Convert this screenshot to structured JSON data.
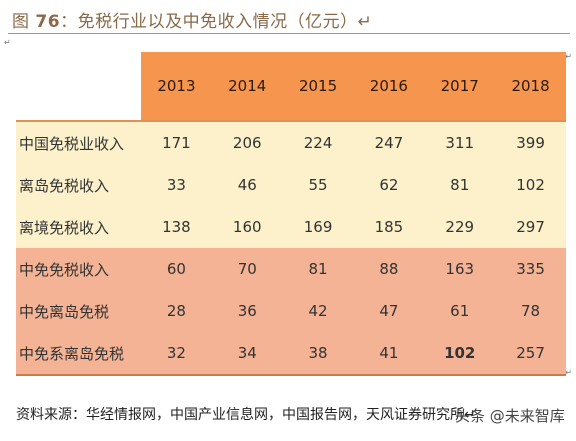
{
  "title": {
    "prefix": "图",
    "number": "76",
    "text": "：免税行业以及中免收入情况（亿元）↵"
  },
  "table": {
    "years": [
      "2013",
      "2014",
      "2015",
      "2016",
      "2017",
      "2018"
    ],
    "rows": [
      {
        "label": "中国免税业收入",
        "values": [
          "171",
          "206",
          "224",
          "247",
          "311",
          "399"
        ]
      },
      {
        "label": "离岛免税收入",
        "values": [
          "33",
          "46",
          "55",
          "62",
          "81",
          "102"
        ]
      },
      {
        "label": "离境免税收入",
        "values": [
          "138",
          "160",
          "169",
          "185",
          "229",
          "297"
        ]
      },
      {
        "label": "中免免税收入",
        "values": [
          "60",
          "70",
          "81",
          "88",
          "163",
          "335"
        ]
      },
      {
        "label": "中免离岛免税",
        "values": [
          "28",
          "36",
          "42",
          "47",
          "61",
          "78"
        ]
      },
      {
        "label": "中免系离岛免税",
        "values": [
          "32",
          "34",
          "38",
          "41",
          "102",
          "257"
        ]
      }
    ]
  },
  "source": "资料来源：华经情报网，中国产业信息网，中国报告网，天风证券研究所↵",
  "watermark": "头条 @未来智库",
  "colors": {
    "header_orange": "#f5954e",
    "row_yellow": "#fdf1cc",
    "row_salmon": "#f3b394",
    "title_brown": "#8a6a4a"
  }
}
